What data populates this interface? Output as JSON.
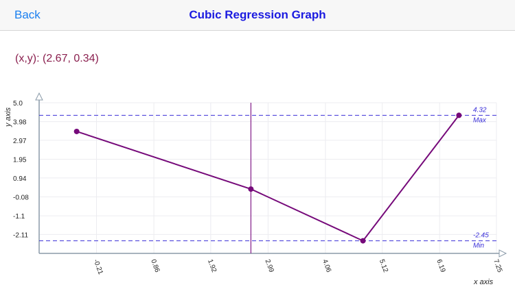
{
  "navbar": {
    "back_label": "Back",
    "title": "Cubic Regression Graph"
  },
  "readout": "(x,y): (2.67, 0.34)",
  "colors": {
    "line": "#760a7a",
    "guide": "#3a2fd8",
    "cursor": "#8a2a8f",
    "grid": "#ececf0",
    "axis": "#8a9aa8"
  },
  "chart_data": {
    "type": "line",
    "xlabel": "x axis",
    "ylabel": "y axis",
    "xlim": [
      -1.28,
      7.25
    ],
    "ylim": [
      -3.13,
      5.0
    ],
    "x_ticks": [
      "-0.21",
      "0.86",
      "1.92",
      "2.99",
      "4.06",
      "5.12",
      "6.19",
      "7.25"
    ],
    "y_ticks": [
      "5.0",
      "3.98",
      "2.97",
      "1.95",
      "0.94",
      "-0.08",
      "-1.1",
      "-2.11"
    ],
    "grid": true,
    "points": [
      {
        "x": -0.58,
        "y": 3.45
      },
      {
        "x": 2.67,
        "y": 0.34
      },
      {
        "x": 4.76,
        "y": -2.45
      },
      {
        "x": 6.55,
        "y": 4.32
      }
    ],
    "cursor_x": 2.67,
    "max": {
      "value": 4.32,
      "label": "4.32",
      "tag": "Max"
    },
    "min": {
      "value": -2.45,
      "label": "-2.45",
      "tag": "Min"
    }
  }
}
